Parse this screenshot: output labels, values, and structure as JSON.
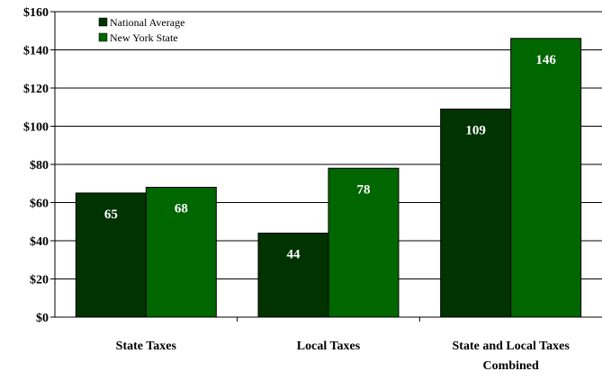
{
  "chart_data": {
    "type": "bar",
    "title": "",
    "xlabel": "",
    "ylabel": "",
    "categories": [
      "State Taxes",
      "Local Taxes",
      "State and Local Taxes Combined"
    ],
    "series": [
      {
        "name": "National Average",
        "values": [
          65,
          44,
          109
        ],
        "color": "#003300"
      },
      {
        "name": "New York State",
        "values": [
          68,
          78,
          146
        ],
        "color": "#006600"
      }
    ],
    "ylim": [
      0,
      160
    ],
    "y_ticks": [
      0,
      20,
      40,
      60,
      80,
      100,
      120,
      140,
      160
    ],
    "y_tick_prefix": "$",
    "grid": true,
    "legend_position": "top-left",
    "data_labels": true
  }
}
